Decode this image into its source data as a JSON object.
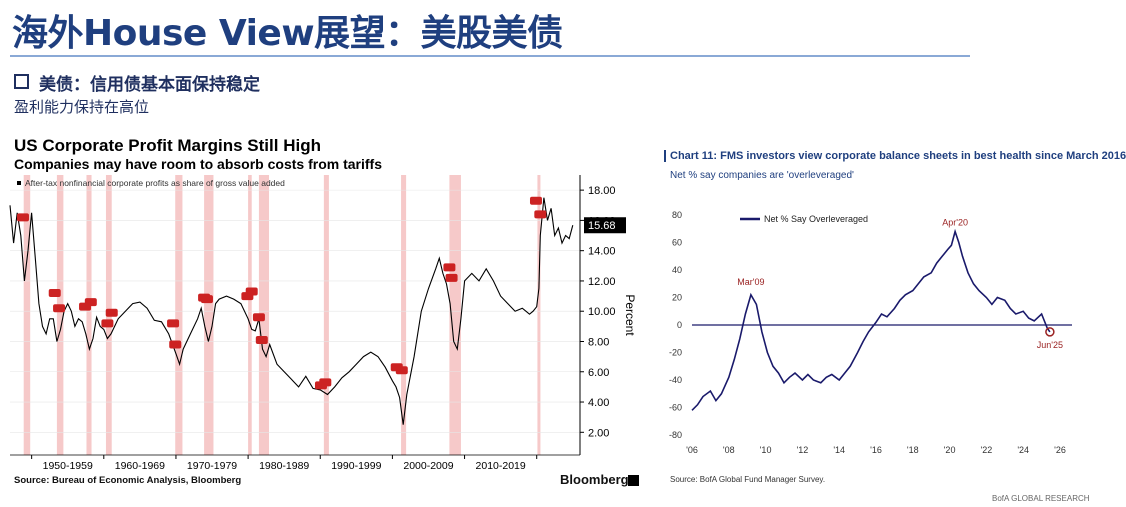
{
  "header": {
    "title": "海外House View展望：美股美债"
  },
  "section": {
    "heading": "美债：信用债基本面保持稳定",
    "subheading": "盈利能力保持在高位"
  },
  "chart_data": [
    {
      "type": "line",
      "title": "US Corporate Profit Margins Still High",
      "subtitle": "Companies may have room to absorb costs from tariffs",
      "legend": "After-tax nonfinancial corporate profits as share of gross value added",
      "ylabel": "Percent",
      "ylim": [
        0.5,
        19
      ],
      "y_ticks": [
        "18.00",
        "16.00",
        "14.00",
        "12.00",
        "10.00",
        "8.00",
        "6.00",
        "4.00",
        "2.00"
      ],
      "x_tick_labels": [
        "1950-1959",
        "1960-1969",
        "1970-1979",
        "1980-1989",
        "1990-1999",
        "2000-2009",
        "2010-2019"
      ],
      "last_value": 15.68,
      "recessions": [
        [
          1948.9,
          1949.8
        ],
        [
          1953.5,
          1954.4
        ],
        [
          1957.6,
          1958.3
        ],
        [
          1960.3,
          1961.1
        ],
        [
          1969.9,
          1970.9
        ],
        [
          1973.9,
          1975.2
        ],
        [
          1980.0,
          1980.5
        ],
        [
          1981.5,
          1982.9
        ],
        [
          1990.5,
          1991.2
        ],
        [
          2001.2,
          2001.9
        ],
        [
          2007.9,
          2009.5
        ],
        [
          2020.1,
          2020.4
        ]
      ],
      "markers": [
        [
          1948.8,
          16.2
        ],
        [
          1953.2,
          11.2
        ],
        [
          1953.8,
          10.2
        ],
        [
          1957.4,
          10.3
        ],
        [
          1958.2,
          10.6
        ],
        [
          1960.5,
          9.2
        ],
        [
          1961.1,
          9.9
        ],
        [
          1969.6,
          9.2
        ],
        [
          1969.9,
          7.8
        ],
        [
          1973.9,
          10.9
        ],
        [
          1974.3,
          10.8
        ],
        [
          1979.9,
          11.0
        ],
        [
          1980.5,
          11.3
        ],
        [
          1981.5,
          9.6
        ],
        [
          1981.9,
          8.1
        ],
        [
          1990.1,
          5.1
        ],
        [
          1990.7,
          5.3
        ],
        [
          2000.6,
          6.3
        ],
        [
          2001.3,
          6.1
        ],
        [
          2007.9,
          12.9
        ],
        [
          2008.2,
          12.2
        ],
        [
          2019.9,
          17.3
        ],
        [
          2020.5,
          16.4
        ]
      ],
      "series": [
        {
          "name": "After-tax nonfinancial corporate profits as share of gross value added",
          "x": [
            1947.0,
            1947.5,
            1948.0,
            1948.5,
            1949.0,
            1949.5,
            1950.0,
            1950.5,
            1951.0,
            1951.5,
            1952.0,
            1952.5,
            1953.0,
            1953.5,
            1954.0,
            1954.5,
            1955.0,
            1955.5,
            1956.0,
            1956.5,
            1957.0,
            1957.5,
            1958.0,
            1958.5,
            1959.0,
            1959.5,
            1960.0,
            1960.5,
            1961.0,
            1961.5,
            1962.0,
            1963.0,
            1964.0,
            1965.0,
            1966.0,
            1967.0,
            1968.0,
            1969.0,
            1970.0,
            1970.5,
            1971.0,
            1972.0,
            1973.0,
            1973.5,
            1974.0,
            1974.5,
            1975.0,
            1975.5,
            1976.0,
            1977.0,
            1978.0,
            1979.0,
            1980.0,
            1980.5,
            1981.0,
            1981.5,
            1982.0,
            1982.5,
            1983.0,
            1984.0,
            1985.0,
            1986.0,
            1987.0,
            1988.0,
            1989.0,
            1990.0,
            1991.0,
            1992.0,
            1993.0,
            1994.0,
            1995.0,
            1996.0,
            1997.0,
            1998.0,
            1999.0,
            2000.0,
            2000.5,
            2001.0,
            2001.5,
            2002.0,
            2003.0,
            2004.0,
            2005.0,
            2006.0,
            2006.5,
            2007.0,
            2007.5,
            2008.0,
            2008.5,
            2009.0,
            2009.5,
            2010.0,
            2011.0,
            2012.0,
            2013.0,
            2014.0,
            2015.0,
            2016.0,
            2017.0,
            2018.0,
            2018.5,
            2019.0,
            2019.5,
            2020.0,
            2020.3,
            2020.5,
            2021.0,
            2021.5,
            2022.0,
            2022.5,
            2023.0,
            2023.5,
            2024.0,
            2024.5,
            2025.0
          ],
          "values": [
            17.0,
            14.5,
            16.5,
            15.0,
            12.0,
            14.0,
            16.5,
            13.5,
            10.5,
            9.0,
            8.5,
            9.5,
            9.5,
            8.0,
            8.8,
            10.0,
            10.5,
            10.0,
            9.0,
            9.5,
            9.3,
            8.5,
            7.5,
            8.2,
            9.6,
            9.0,
            8.8,
            8.2,
            8.5,
            9.0,
            9.5,
            10.0,
            10.5,
            10.6,
            10.2,
            9.4,
            9.3,
            8.5,
            7.2,
            6.5,
            7.5,
            8.5,
            9.5,
            10.2,
            9.0,
            8.0,
            9.0,
            10.5,
            10.8,
            11.0,
            10.8,
            10.5,
            9.5,
            8.8,
            8.7,
            9.5,
            7.5,
            7.0,
            7.8,
            6.5,
            6.0,
            5.5,
            5.0,
            5.7,
            4.9,
            4.8,
            4.5,
            5.0,
            5.6,
            6.0,
            6.5,
            7.0,
            7.3,
            7.0,
            6.3,
            5.4,
            5.0,
            4.3,
            2.5,
            4.5,
            7.0,
            10.0,
            11.5,
            12.8,
            13.5,
            12.5,
            11.8,
            10.5,
            8.0,
            7.5,
            9.5,
            12.0,
            12.5,
            12.0,
            12.8,
            12.0,
            11.0,
            10.5,
            10.0,
            10.2,
            10.0,
            9.8,
            10.0,
            10.3,
            11.5,
            15.0,
            17.5,
            16.0,
            16.8,
            15.0,
            15.5,
            14.5,
            15.0,
            14.8,
            15.68
          ]
        }
      ]
    },
    {
      "type": "line",
      "title": "Chart 11: FMS investors view corporate balance sheets in best health since March 2016",
      "subtitle": "Net % say companies are 'overleveraged'",
      "ylim": [
        -80,
        80
      ],
      "y_ticks": [
        80,
        60,
        40,
        20,
        0,
        -20,
        -40,
        -60,
        -80
      ],
      "x_ticks": [
        "'06",
        "'08",
        "'10",
        "'12",
        "'14",
        "'16",
        "'18",
        "'20",
        "'22",
        "'24",
        "'26"
      ],
      "annotations": [
        "Mar'09",
        "Apr'20",
        "Jun'25"
      ],
      "source": "Source: BofA Global Fund Manager Survey.",
      "series": [
        {
          "name": "Net % Say Overleveraged",
          "x": [
            2006.0,
            2006.3,
            2006.6,
            2007.0,
            2007.3,
            2007.6,
            2008.0,
            2008.3,
            2008.6,
            2008.9,
            2009.2,
            2009.5,
            2009.8,
            2010.1,
            2010.4,
            2010.7,
            2011.0,
            2011.3,
            2011.6,
            2012.0,
            2012.3,
            2012.6,
            2013.0,
            2013.3,
            2013.6,
            2014.0,
            2014.3,
            2014.6,
            2015.0,
            2015.3,
            2015.6,
            2016.0,
            2016.3,
            2016.6,
            2017.0,
            2017.3,
            2017.6,
            2018.0,
            2018.3,
            2018.6,
            2019.0,
            2019.3,
            2019.6,
            2019.9,
            2020.1,
            2020.3,
            2020.5,
            2020.7,
            2021.0,
            2021.3,
            2021.6,
            2022.0,
            2022.3,
            2022.6,
            2023.0,
            2023.3,
            2023.6,
            2024.0,
            2024.3,
            2024.6,
            2025.0,
            2025.3,
            2025.45
          ],
          "values": [
            -62,
            -58,
            -52,
            -48,
            -55,
            -50,
            -38,
            -25,
            -10,
            8,
            22,
            15,
            -5,
            -20,
            -30,
            -35,
            -42,
            -38,
            -35,
            -40,
            -36,
            -40,
            -42,
            -38,
            -36,
            -40,
            -35,
            -30,
            -20,
            -12,
            -5,
            2,
            8,
            6,
            12,
            18,
            22,
            25,
            30,
            35,
            38,
            45,
            50,
            55,
            58,
            68,
            60,
            50,
            38,
            30,
            25,
            20,
            15,
            20,
            18,
            12,
            8,
            10,
            5,
            3,
            8,
            -2,
            -5
          ]
        }
      ]
    }
  ]
}
